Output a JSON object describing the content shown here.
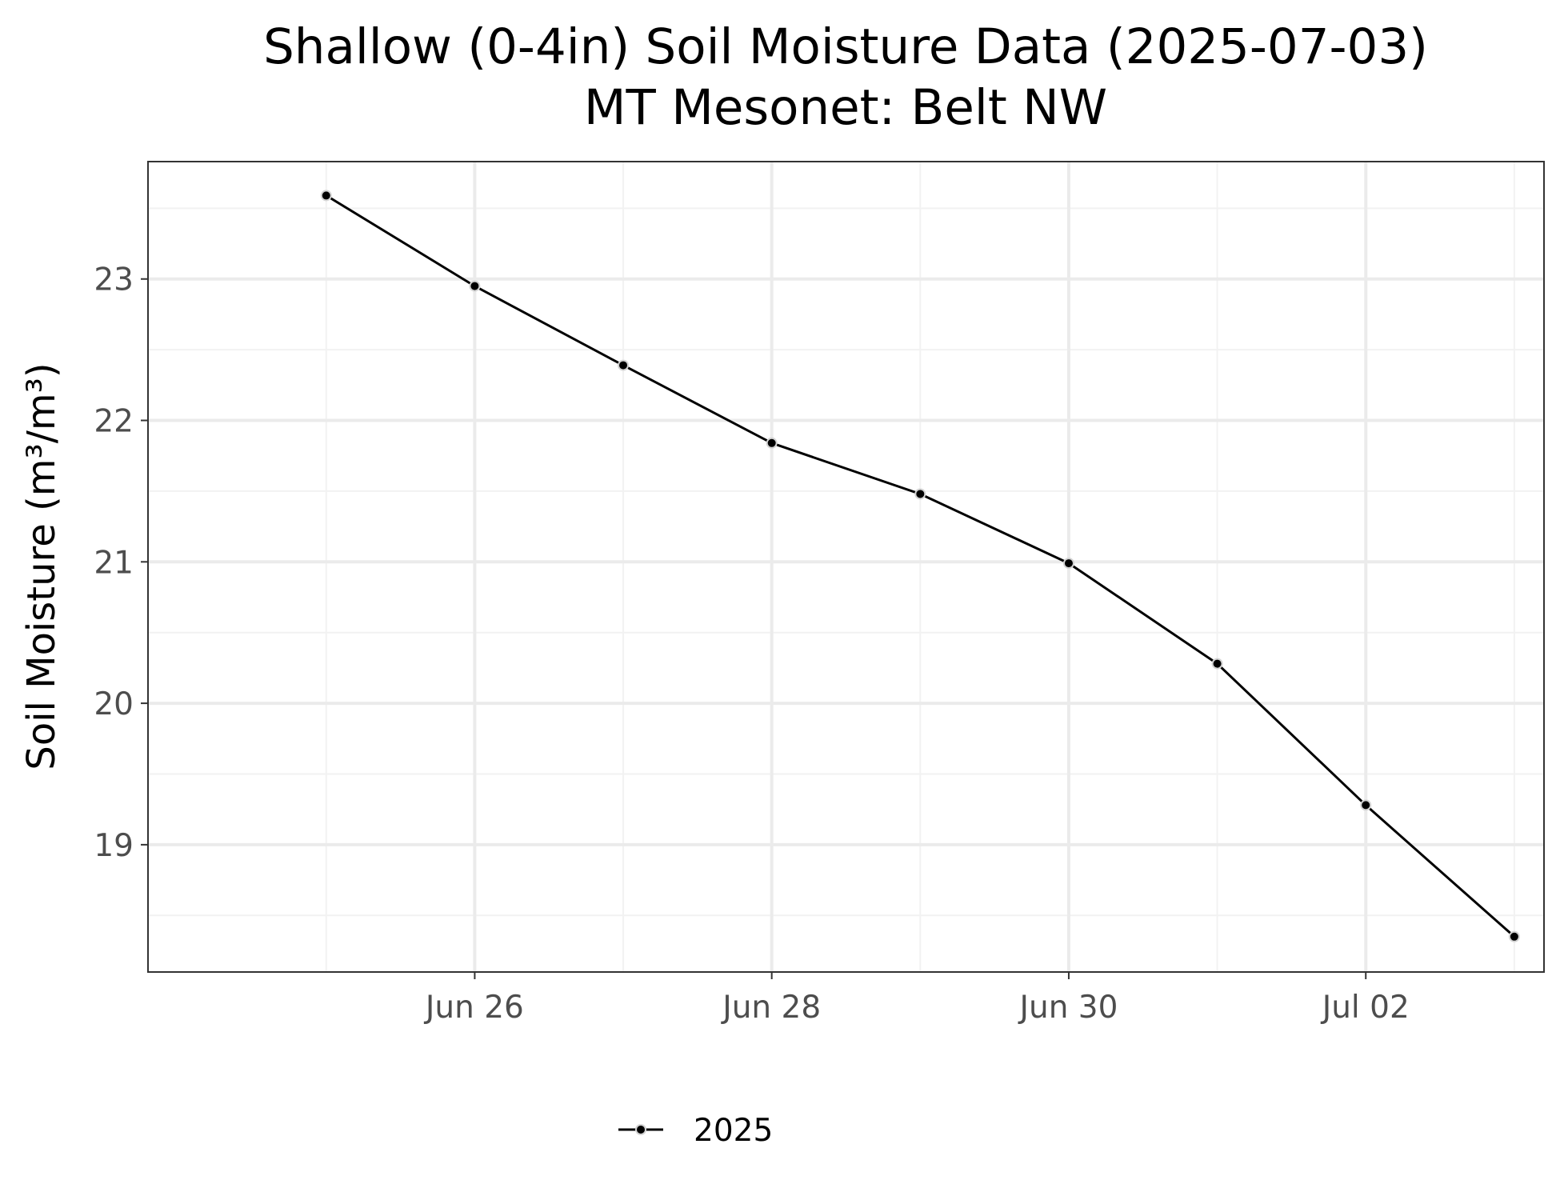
{
  "chart_data": {
    "type": "line",
    "title": "Shallow (0-4in) Soil Moisture Data (2025-07-03)",
    "subtitle": "MT Mesonet: Belt NW",
    "xlabel": "",
    "ylabel": "Soil Moisture (m³/m³)",
    "x": [
      "2025-06-25",
      "2025-06-26",
      "2025-06-27",
      "2025-06-28",
      "2025-06-29",
      "2025-06-30",
      "2025-07-01",
      "2025-07-02",
      "2025-07-03"
    ],
    "x_ticks": [
      {
        "value": "2025-06-26",
        "label": "Jun 26"
      },
      {
        "value": "2025-06-28",
        "label": "Jun 28"
      },
      {
        "value": "2025-06-30",
        "label": "Jun 30"
      },
      {
        "value": "2025-07-02",
        "label": "Jul 02"
      }
    ],
    "xlim": [
      "2025-06-24",
      "2025-07-03"
    ],
    "y_ticks": [
      19,
      20,
      21,
      22,
      23
    ],
    "ylim": [
      18.1,
      23.83
    ],
    "series": [
      {
        "name": "2025",
        "color": "#000000",
        "values": [
          23.59,
          22.95,
          22.39,
          21.84,
          21.48,
          20.99,
          20.28,
          19.28,
          18.35
        ]
      }
    ],
    "grid": true,
    "legend_position": "bottom",
    "colors": {
      "panel_border": "#333333",
      "grid_major": "#ebebeb",
      "grid_minor": "#f2f2f2",
      "tick_text": "#4d4d4d",
      "point_outline": "#d3d3d3"
    }
  }
}
